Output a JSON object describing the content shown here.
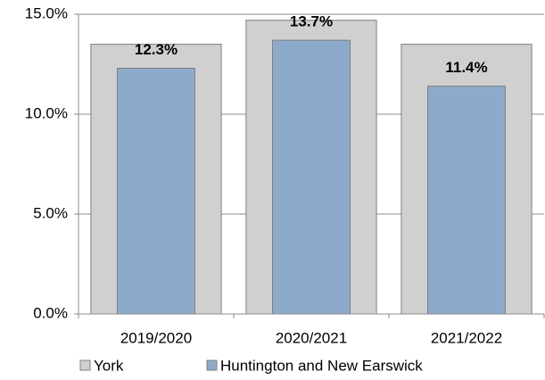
{
  "chart_data": {
    "type": "bar",
    "categories": [
      "2019/2020",
      "2020/2021",
      "2021/2022"
    ],
    "series": [
      {
        "name": "York",
        "color": "#d0d0d0",
        "values": [
          13.5,
          14.7,
          13.5
        ]
      },
      {
        "name": "Huntington and New Earswick",
        "color": "#8eaacb",
        "values": [
          12.3,
          13.7,
          11.4
        ],
        "value_labels": [
          "12.3%",
          "13.7%",
          "11.4%"
        ]
      }
    ],
    "ylim": [
      0,
      15
    ],
    "yticks": [
      {
        "value": 0,
        "label": "0.0%"
      },
      {
        "value": 5,
        "label": "5.0%"
      },
      {
        "value": 10,
        "label": "10.0%"
      },
      {
        "value": 15,
        "label": "15.0%"
      }
    ],
    "grid": true,
    "legend": "bottom"
  }
}
